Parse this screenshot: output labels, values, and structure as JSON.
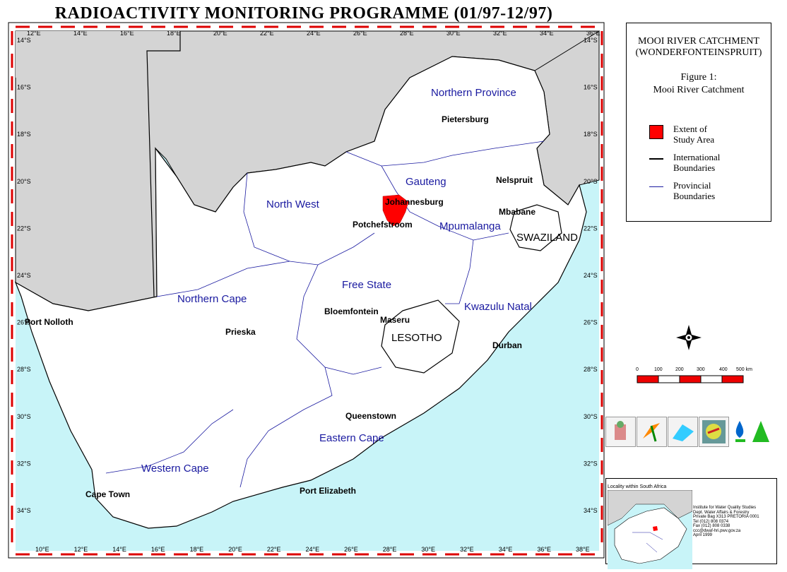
{
  "title": "RADIOACTIVITY MONITORING PROGRAMME (01/97-12/97)",
  "map": {
    "top_ticks": [
      "12°E",
      "14°E",
      "16°E",
      "18°E",
      "20°E",
      "22°E",
      "24°E",
      "26°E",
      "28°E",
      "30°E",
      "32°E",
      "34°E",
      "36°E"
    ],
    "bottom_ticks": [
      "10°E",
      "12°E",
      "14°E",
      "16°E",
      "18°E",
      "20°E",
      "22°E",
      "24°E",
      "26°E",
      "28°E",
      "30°E",
      "32°E",
      "34°E",
      "36°E",
      "38°E"
    ],
    "left_ticks": [
      "14°S",
      "16°S",
      "18°S",
      "20°S",
      "22°S",
      "24°S",
      "26°S",
      "28°S",
      "30°S",
      "32°S",
      "34°S"
    ],
    "right_ticks": [
      "14°S",
      "16°S",
      "18°S",
      "20°S",
      "22°S",
      "24°S",
      "26°S",
      "28°S",
      "30°S",
      "32°S",
      "34°S"
    ],
    "provinces": [
      "Northern Province",
      "Gauteng",
      "North West",
      "Mpumalanga",
      "Free State",
      "Northern Cape",
      "Kwazulu Natal",
      "Eastern Cape",
      "Western Cape"
    ],
    "countries": [
      "SWAZILAND",
      "LESOTHO"
    ],
    "places": [
      "Pietersburg",
      "Nelspruit",
      "Johannesburg",
      "Mbabane",
      "Potchefstroom",
      "Bloemfontein",
      "Maseru",
      "Port Nolloth",
      "Prieska",
      "Durban",
      "Queenstown",
      "Port Elizabeth",
      "Cape Town"
    ]
  },
  "legend": {
    "heading_line1": "MOOI RIVER CATCHMENT",
    "heading_line2": "(WONDERFONTEINSPRUIT)",
    "figure_line1": "Figure 1:",
    "figure_line2": "Mooi River Catchment",
    "item1_line1": "Extent of",
    "item1_line2": "Study Area",
    "item2_line1": "International",
    "item2_line2": "Boundaries",
    "item3_line1": "Provincial",
    "item3_line2": "Boundaries",
    "colors": {
      "study_area": "#ff0000",
      "international": "#000000",
      "provincial": "#1a1aa0",
      "sea": "#c8f4f8",
      "land_outside": "#d4d4d4"
    }
  },
  "scale": {
    "labels": [
      "0",
      "100",
      "200",
      "300",
      "400",
      "500 km"
    ]
  },
  "inset": {
    "caption": "Locality within South Africa",
    "info_lines": [
      "Institute for Water Quality Studies",
      "Dept. Water Affairs & Forestry",
      "Private Bag X313 PRETORIA 0001",
      "Tel (012) 808 0374",
      "Fax (012) 808 0338",
      "ccc@dwaf-hri.pwv.gov.za",
      "April 1999"
    ]
  }
}
